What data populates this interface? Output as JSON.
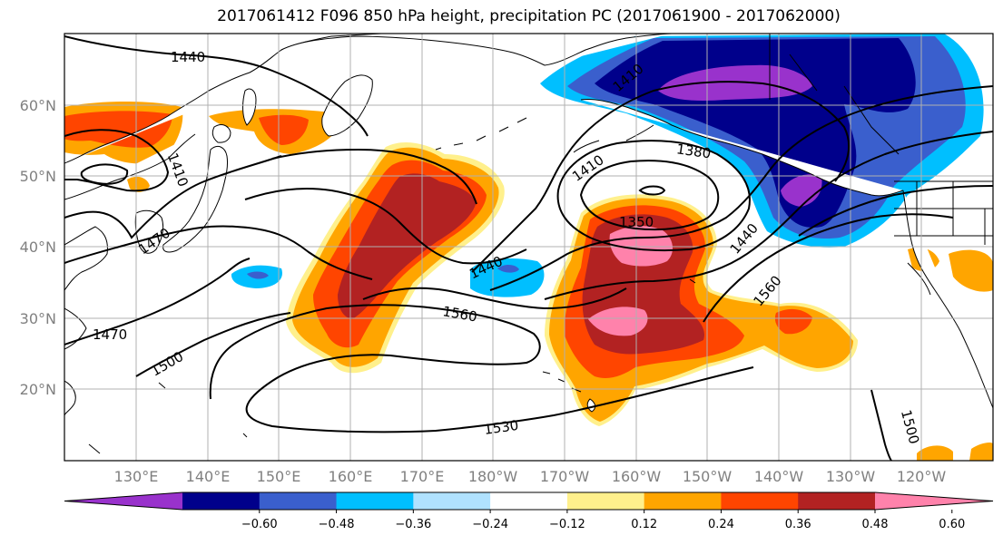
{
  "title": "2017061412 F096 850 hPa height, precipitation PC (2017061900 - 2017062000)",
  "lat_labels": [
    "60°N",
    "50°N",
    "40°N",
    "30°N",
    "20°N"
  ],
  "lon_labels": [
    "130°E",
    "140°E",
    "150°E",
    "160°E",
    "170°E",
    "180°W",
    "170°W",
    "160°W",
    "150°W",
    "140°W",
    "130°W",
    "120°W"
  ],
  "contour_labels": {
    "c1440_top": "1440",
    "c1410_nw": "1410",
    "c1470_nw": "1470",
    "c1410_c": "1410",
    "c1410_ne": "1410",
    "c1380": "1380",
    "c1350": "1350",
    "c1440_c": "1440",
    "c1440_e": "1440",
    "c1560_c": "1560",
    "c1560_e": "1560",
    "c1470_w": "1470",
    "c1500_w": "1500",
    "c1530_s": "1530",
    "c1500_e": "1500"
  },
  "colorbar": {
    "tick_labels": [
      "−0.60",
      "−0.48",
      "−0.36",
      "−0.24",
      "−0.12",
      "0.12",
      "0.24",
      "0.36",
      "0.48",
      "0.60"
    ],
    "colors": [
      "#9932cc",
      "#00008b",
      "#3a5fcd",
      "#00bfff",
      "#b0e2ff",
      "#ffffff",
      "#fff08c",
      "#ffa500",
      "#ff4500",
      "#b22222",
      "#ff82ab"
    ]
  },
  "legend": {
    "neg_strong": "#9932cc",
    "neg_1": "#00008b",
    "neg_2": "#3a5fcd",
    "neg_3": "#00bfff",
    "neg_4": "#b0e2ff",
    "pos_1": "#fff08c",
    "pos_2": "#ffa500",
    "pos_3": "#ff4500",
    "pos_4": "#b22222",
    "pos_strong": "#ff82ab"
  }
}
